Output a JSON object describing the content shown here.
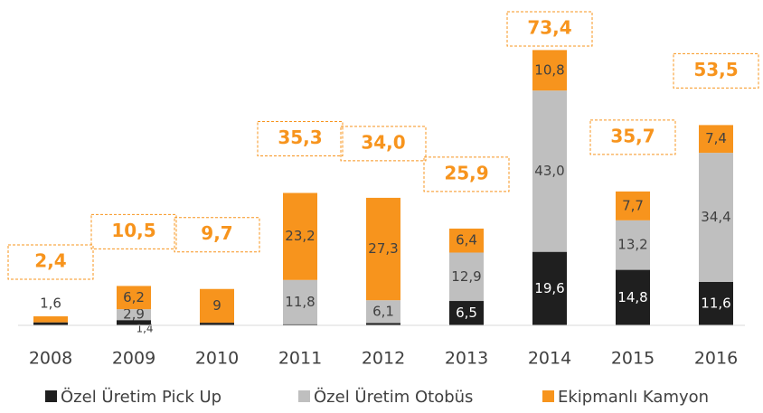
{
  "chart_data": {
    "type": "stacked_bar",
    "categories": [
      "2008",
      "2009",
      "2010",
      "2011",
      "2012",
      "2013",
      "2014",
      "2015",
      "2016"
    ],
    "series": [
      {
        "name": "Özel Üretim Pick Up",
        "color": "#1f1f1f",
        "values": [
          0.8,
          1.4,
          0.7,
          0.3,
          0.6,
          6.5,
          19.6,
          14.8,
          11.6
        ],
        "value_labels": [
          null,
          "1,4",
          null,
          null,
          null,
          "6,5",
          "19,6",
          "14,8",
          "11,6"
        ]
      },
      {
        "name": "Özel Üretim Otobüs",
        "color": "#bfbfbf",
        "values": [
          0,
          2.9,
          0,
          11.8,
          6.1,
          12.9,
          43.0,
          13.2,
          34.4
        ],
        "value_labels": [
          null,
          "2,9",
          null,
          "11,8",
          "6,1",
          "12,9",
          "43,0",
          "13,2",
          "34,4"
        ]
      },
      {
        "name": "Ekipmanlı Kamyon",
        "color": "#f7941d",
        "values": [
          1.6,
          6.2,
          9,
          23.2,
          27.3,
          6.4,
          10.8,
          7.7,
          7.4
        ],
        "value_labels": [
          "1,6",
          "6,2",
          "9",
          "23,2",
          "27,3",
          "6,4",
          "10,8",
          "7,7",
          "7,4"
        ]
      }
    ],
    "totals": {
      "values": [
        2.4,
        10.5,
        9.7,
        35.3,
        34.0,
        25.9,
        73.4,
        35.7,
        53.5
      ],
      "value_labels": [
        "2,4",
        "10,5",
        "9,7",
        "35,3",
        "34,0",
        "25,9",
        "73,4",
        "35,7",
        "53,5"
      ]
    },
    "ylim": [
      0,
      80
    ]
  }
}
